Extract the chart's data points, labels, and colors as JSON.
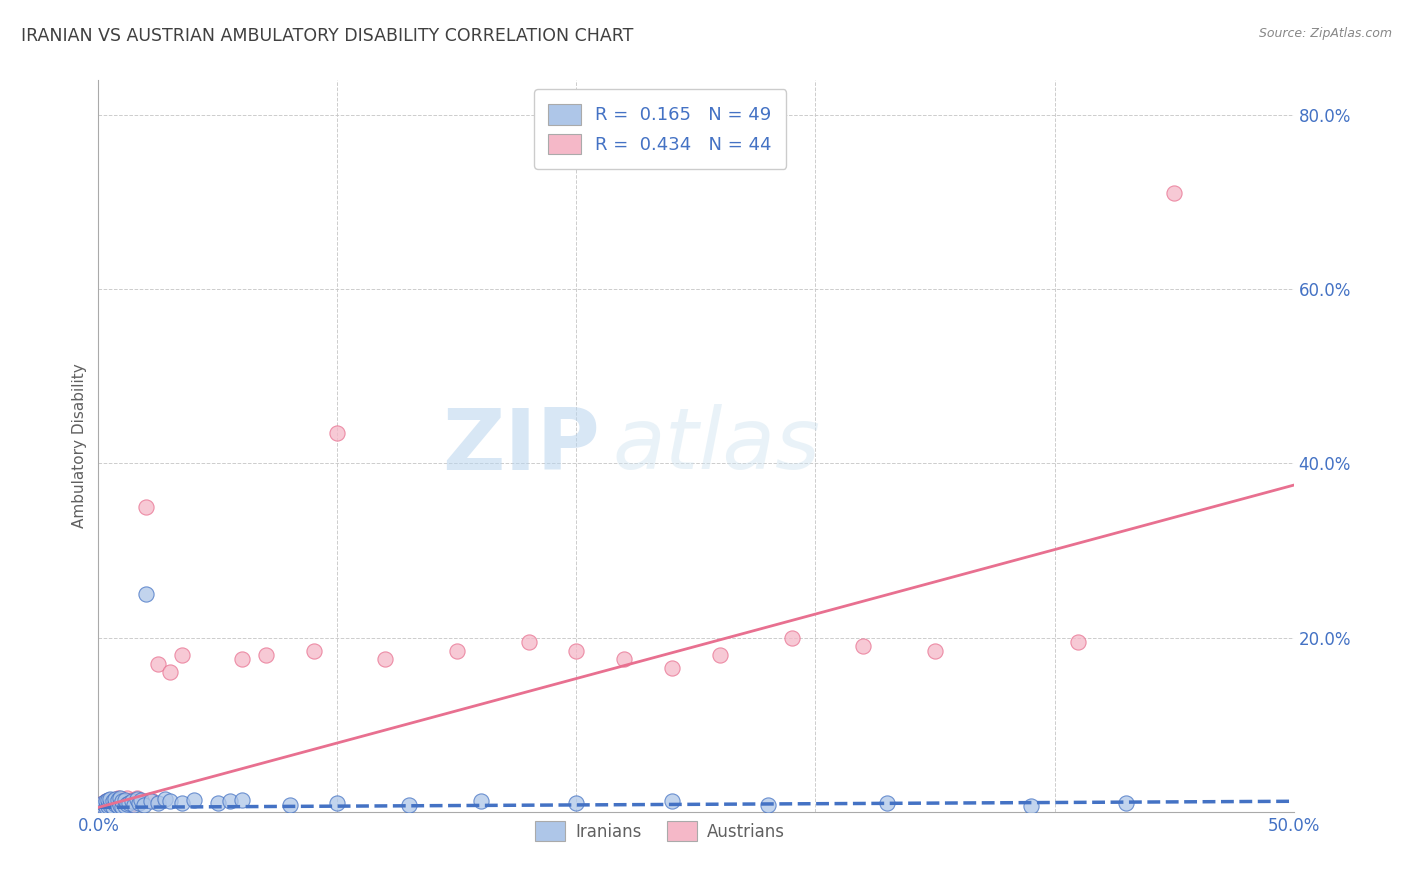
{
  "title": "IRANIAN VS AUSTRIAN AMBULATORY DISABILITY CORRELATION CHART",
  "source": "Source: ZipAtlas.com",
  "ylabel": "Ambulatory Disability",
  "xlim": [
    0.0,
    0.5
  ],
  "ylim": [
    0.0,
    0.84
  ],
  "xticks": [
    0.0,
    0.1,
    0.2,
    0.3,
    0.4,
    0.5
  ],
  "xticklabels": [
    "0.0%",
    "",
    "",
    "",
    "",
    "50.0%"
  ],
  "yticks": [
    0.0,
    0.2,
    0.4,
    0.6,
    0.8
  ],
  "yticklabels": [
    "",
    "20.0%",
    "40.0%",
    "60.0%",
    "80.0%"
  ],
  "iranian_R": 0.165,
  "iranian_N": 49,
  "austrian_R": 0.434,
  "austrian_N": 44,
  "iranian_color": "#aec6e8",
  "austrian_color": "#f5b8c8",
  "iranian_line_color": "#4472c4",
  "austrian_line_color": "#e87090",
  "background_color": "#ffffff",
  "grid_color": "#c8c8c8",
  "title_color": "#404040",
  "axis_label_color": "#606060",
  "tick_color": "#4472c4",
  "legend_label1": "Iranians",
  "legend_label2": "Austrians",
  "watermark_zip": "ZIP",
  "watermark_atlas": "atlas",
  "iranian_line_start_y": 0.005,
  "iranian_line_end_y": 0.012,
  "austrian_line_start_y": 0.005,
  "austrian_line_end_y": 0.375,
  "iranian_scatter_x": [
    0.001,
    0.002,
    0.002,
    0.003,
    0.003,
    0.004,
    0.004,
    0.005,
    0.005,
    0.006,
    0.006,
    0.007,
    0.007,
    0.008,
    0.008,
    0.009,
    0.009,
    0.01,
    0.01,
    0.011,
    0.011,
    0.012,
    0.013,
    0.014,
    0.015,
    0.016,
    0.017,
    0.018,
    0.019,
    0.02,
    0.022,
    0.025,
    0.028,
    0.03,
    0.035,
    0.04,
    0.05,
    0.055,
    0.06,
    0.08,
    0.1,
    0.13,
    0.16,
    0.2,
    0.24,
    0.28,
    0.33,
    0.39,
    0.43
  ],
  "iranian_scatter_y": [
    0.003,
    0.006,
    0.01,
    0.005,
    0.012,
    0.007,
    0.014,
    0.008,
    0.015,
    0.005,
    0.012,
    0.009,
    0.015,
    0.006,
    0.013,
    0.008,
    0.016,
    0.005,
    0.012,
    0.007,
    0.014,
    0.009,
    0.01,
    0.012,
    0.008,
    0.015,
    0.01,
    0.014,
    0.008,
    0.25,
    0.012,
    0.01,
    0.015,
    0.012,
    0.01,
    0.013,
    0.01,
    0.012,
    0.014,
    0.008,
    0.01,
    0.008,
    0.012,
    0.01,
    0.012,
    0.008,
    0.01,
    0.007,
    0.01
  ],
  "austrian_scatter_x": [
    0.001,
    0.002,
    0.002,
    0.003,
    0.003,
    0.004,
    0.005,
    0.005,
    0.006,
    0.007,
    0.007,
    0.008,
    0.008,
    0.009,
    0.01,
    0.01,
    0.011,
    0.012,
    0.013,
    0.014,
    0.015,
    0.016,
    0.018,
    0.02,
    0.022,
    0.025,
    0.03,
    0.035,
    0.06,
    0.07,
    0.09,
    0.1,
    0.12,
    0.15,
    0.18,
    0.2,
    0.22,
    0.24,
    0.26,
    0.29,
    0.32,
    0.35,
    0.41,
    0.45
  ],
  "austrian_scatter_y": [
    0.003,
    0.006,
    0.01,
    0.005,
    0.012,
    0.007,
    0.004,
    0.014,
    0.008,
    0.005,
    0.012,
    0.009,
    0.016,
    0.006,
    0.013,
    0.01,
    0.008,
    0.016,
    0.006,
    0.013,
    0.01,
    0.016,
    0.012,
    0.35,
    0.014,
    0.17,
    0.16,
    0.18,
    0.175,
    0.18,
    0.185,
    0.435,
    0.175,
    0.185,
    0.195,
    0.185,
    0.175,
    0.165,
    0.18,
    0.2,
    0.19,
    0.185,
    0.195,
    0.71
  ]
}
